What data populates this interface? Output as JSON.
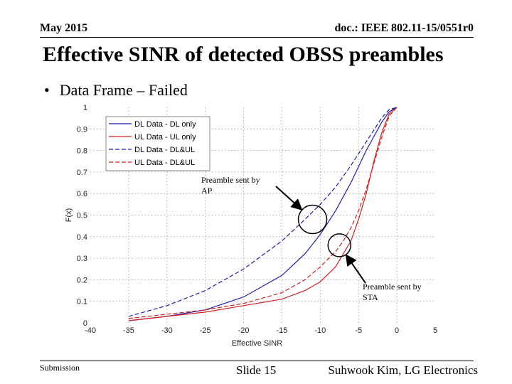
{
  "header": {
    "date": "May 2015",
    "doc_id": "doc.: IEEE 802.11-15/0551r0"
  },
  "slide_title": "Effective SINR of detected OBSS preambles",
  "bullet": {
    "symbol": "•",
    "text": "Data Frame – Failed"
  },
  "footer": {
    "left": "Submission",
    "center": "Slide 15",
    "right": "Suhwook Kim, LG Electronics"
  },
  "colors": {
    "dl": "#1f1fb4",
    "ul": "#d42020",
    "grid": "#999999"
  },
  "chart_data": {
    "type": "line",
    "title": "",
    "xlabel": "Effective SINR",
    "ylabel": "F(x)",
    "xlim": [
      -40,
      5
    ],
    "ylim": [
      0,
      1
    ],
    "xticks": [
      -40,
      -35,
      -30,
      -25,
      -20,
      -15,
      -10,
      -5,
      0,
      5
    ],
    "yticks": [
      0,
      0.1,
      0.2,
      0.3,
      0.4,
      0.5,
      0.6,
      0.7,
      0.8,
      0.9,
      1
    ],
    "grid": true,
    "legend_position": "top-left",
    "series": [
      {
        "name": "DL Data - DL only",
        "color": "#1f1fb4",
        "dash": false,
        "x": [
          -35,
          -30,
          -25,
          -20,
          -15,
          -12,
          -10,
          -8,
          -6,
          -4,
          -2,
          -1,
          0
        ],
        "y": [
          0.01,
          0.03,
          0.06,
          0.12,
          0.22,
          0.32,
          0.41,
          0.52,
          0.65,
          0.8,
          0.93,
          0.98,
          1.0
        ]
      },
      {
        "name": "UL Data - UL only",
        "color": "#d42020",
        "dash": false,
        "x": [
          -35,
          -30,
          -25,
          -20,
          -15,
          -12,
          -10,
          -8,
          -6,
          -5,
          -4,
          -3,
          -2,
          -1,
          0
        ],
        "y": [
          0.01,
          0.03,
          0.05,
          0.08,
          0.11,
          0.15,
          0.19,
          0.26,
          0.38,
          0.48,
          0.6,
          0.75,
          0.88,
          0.97,
          1.0
        ]
      },
      {
        "name": "DL Data - DL&UL",
        "color": "#1f1fb4",
        "dash": true,
        "x": [
          -35,
          -30,
          -25,
          -20,
          -15,
          -12,
          -10,
          -8,
          -6,
          -4,
          -2,
          -1,
          0
        ],
        "y": [
          0.03,
          0.08,
          0.15,
          0.25,
          0.38,
          0.48,
          0.55,
          0.63,
          0.73,
          0.84,
          0.95,
          0.99,
          1.0
        ]
      },
      {
        "name": "UL Data - DL&UL",
        "color": "#d42020",
        "dash": true,
        "x": [
          -35,
          -30,
          -25,
          -20,
          -15,
          -12,
          -10,
          -8,
          -7,
          -6,
          -5,
          -4,
          -3,
          -2,
          -1,
          0
        ],
        "y": [
          0.02,
          0.04,
          0.06,
          0.09,
          0.14,
          0.2,
          0.26,
          0.33,
          0.38,
          0.44,
          0.52,
          0.62,
          0.74,
          0.86,
          0.96,
          1.0
        ]
      }
    ],
    "annotations": [
      {
        "text": "Preamble sent by AP",
        "lines": [
          "Preamble sent by",
          "AP"
        ],
        "target_x": -11,
        "target_y": 0.48
      },
      {
        "text": "Preamble sent by STA",
        "lines": [
          "Preamble sent by",
          "STA"
        ],
        "target_x": -7.5,
        "target_y": 0.36
      }
    ]
  }
}
